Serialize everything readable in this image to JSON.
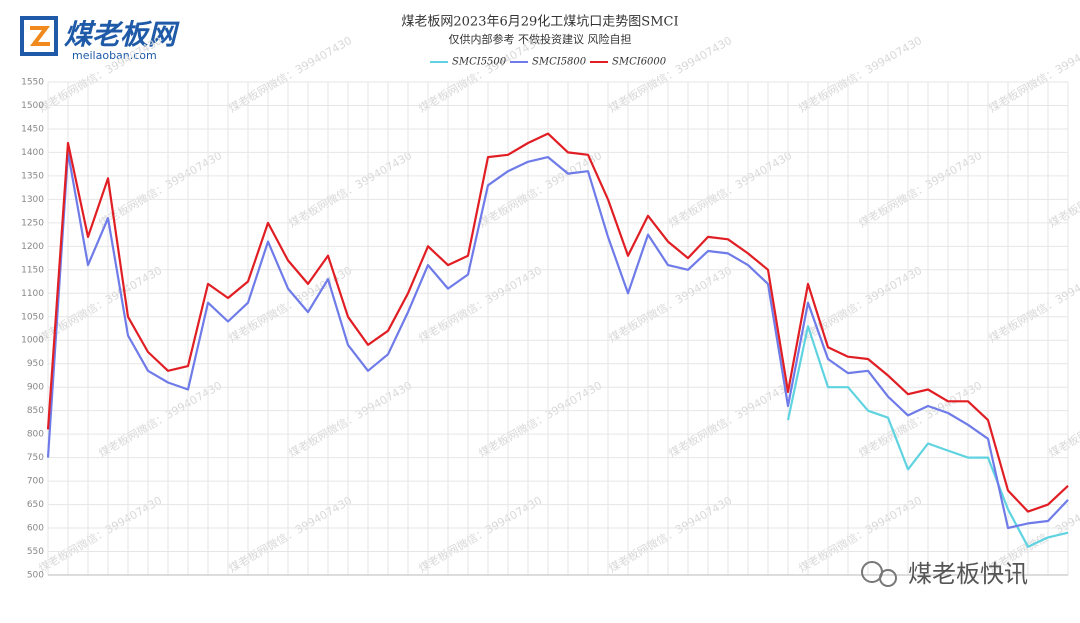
{
  "logo": {
    "name": "煤老板网",
    "site": "meilaoban.com"
  },
  "watermark": "煤老板网微信：399407430",
  "brand": "煤老板快讯",
  "chart_data": {
    "type": "line",
    "title": "煤老板网2023年6月29化工煤坑口走势图SMCI",
    "subtitle": "仅供内部参考 不做投资建议 风险自担",
    "categories": [
      null,
      null,
      null,
      null,
      null,
      null,
      null,
      null,
      null,
      null,
      null,
      null,
      null,
      null,
      null,
      null,
      null,
      null,
      null,
      null,
      null,
      null,
      null,
      null,
      null,
      null,
      null,
      null,
      null,
      null,
      null,
      null,
      null,
      null,
      null,
      null,
      null,
      null,
      null,
      null,
      null,
      null,
      null,
      null,
      null,
      null,
      null,
      null,
      null,
      null,
      null,
      null
    ],
    "series": [
      {
        "name": "SMCI5500",
        "color": "#5fd3e0",
        "values": [
          null,
          null,
          null,
          null,
          null,
          null,
          null,
          null,
          null,
          null,
          null,
          null,
          null,
          null,
          null,
          null,
          null,
          null,
          null,
          null,
          null,
          null,
          null,
          null,
          null,
          null,
          null,
          null,
          null,
          null,
          null,
          null,
          null,
          null,
          null,
          null,
          null,
          830,
          1030,
          900,
          900,
          850,
          835,
          725,
          780,
          765,
          750,
          750,
          640,
          560,
          580,
          590
        ]
      },
      {
        "name": "SMCI5800",
        "color": "#6f7be8",
        "values": [
          750,
          1400,
          1160,
          1260,
          1010,
          935,
          910,
          895,
          1080,
          1040,
          1080,
          1210,
          1110,
          1060,
          1130,
          990,
          935,
          970,
          1060,
          1160,
          1110,
          1140,
          1330,
          1360,
          1380,
          1390,
          1355,
          1360,
          1220,
          1100,
          1225,
          1160,
          1150,
          1190,
          1185,
          1160,
          1120,
          860,
          1080,
          960,
          930,
          935,
          880,
          840,
          860,
          845,
          820,
          790,
          600,
          610,
          615,
          660
        ]
      },
      {
        "name": "SMCI6000",
        "color": "#e01e24",
        "values": [
          810,
          1420,
          1220,
          1345,
          1050,
          975,
          935,
          945,
          1120,
          1090,
          1125,
          1250,
          1170,
          1120,
          1180,
          1050,
          990,
          1020,
          1100,
          1200,
          1160,
          1180,
          1390,
          1395,
          1420,
          1440,
          1400,
          1395,
          1300,
          1180,
          1265,
          1210,
          1175,
          1220,
          1215,
          1185,
          1150,
          890,
          1120,
          985,
          965,
          960,
          925,
          885,
          895,
          870,
          870,
          830,
          680,
          635,
          650,
          690
        ]
      }
    ],
    "ylim": [
      500,
      1550
    ],
    "yticks": [
      500,
      550,
      600,
      650,
      700,
      750,
      800,
      850,
      900,
      950,
      1000,
      1050,
      1100,
      1150,
      1200,
      1250,
      1300,
      1350,
      1400,
      1450,
      1500,
      1550
    ],
    "grid": true
  }
}
